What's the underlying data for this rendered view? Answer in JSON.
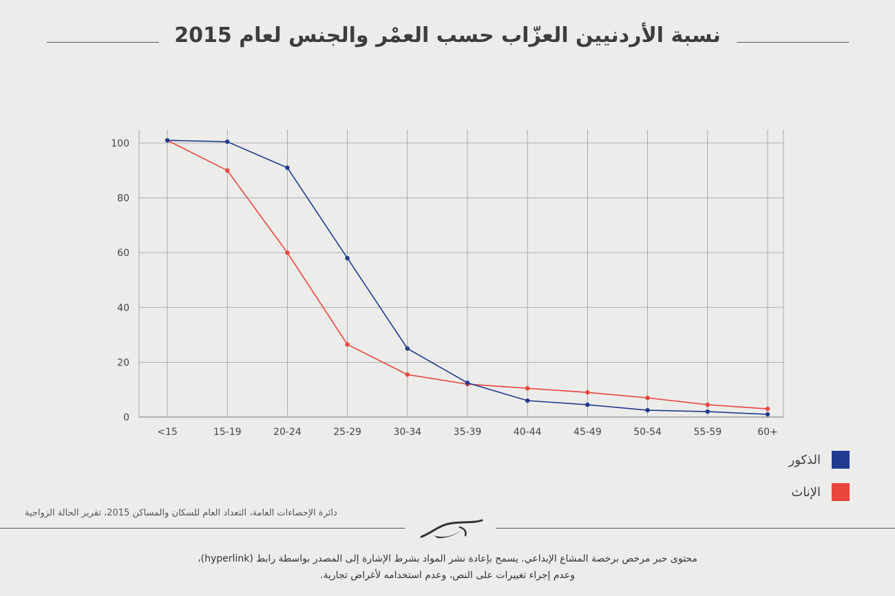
{
  "title": "نسبة الأردنيين العزّاب حسب العمْر والجنس لعام 2015",
  "source": "دائرة الإحصاءات العامة، التعداد العام للسكان والمساكن 2015، تقرير الحالة الزواجية",
  "footer": {
    "line1": "محتوى حبر مرخص برخصة المشاع الإبداعي. يسمح بإعادة نشر المواد بشرط الإشارة إلى المصدر بواسطة رابط (hyperlink)،",
    "line2": "وعدم إجراء تغييرات على النص، وعدم استخدامه لأغراض تجارية."
  },
  "logo_icon": "hibr-logo-icon",
  "chart_data": {
    "type": "line",
    "title": "نسبة الأردنيين العزّاب حسب العمْر والجنس لعام 2015",
    "categories": [
      "<15",
      "15-19",
      "20-24",
      "25-29",
      "30-34",
      "35-39",
      "40-44",
      "45-49",
      "50-54",
      "55-59",
      "60+"
    ],
    "series": [
      {
        "name": "الذكور",
        "color": "#1f3a8f",
        "values": [
          101,
          100.5,
          91,
          58,
          25,
          12.5,
          6,
          4.5,
          2.5,
          2,
          1
        ]
      },
      {
        "name": "الإناث",
        "color": "#e8453c",
        "values": [
          101,
          90,
          60,
          26.5,
          15.5,
          12,
          10.5,
          9,
          7,
          4.5,
          3
        ]
      }
    ],
    "yticks": [
      0,
      20,
      40,
      60,
      80,
      100
    ],
    "ylim": [
      0,
      105
    ],
    "grid": true,
    "legend_position": "bottom-right"
  }
}
